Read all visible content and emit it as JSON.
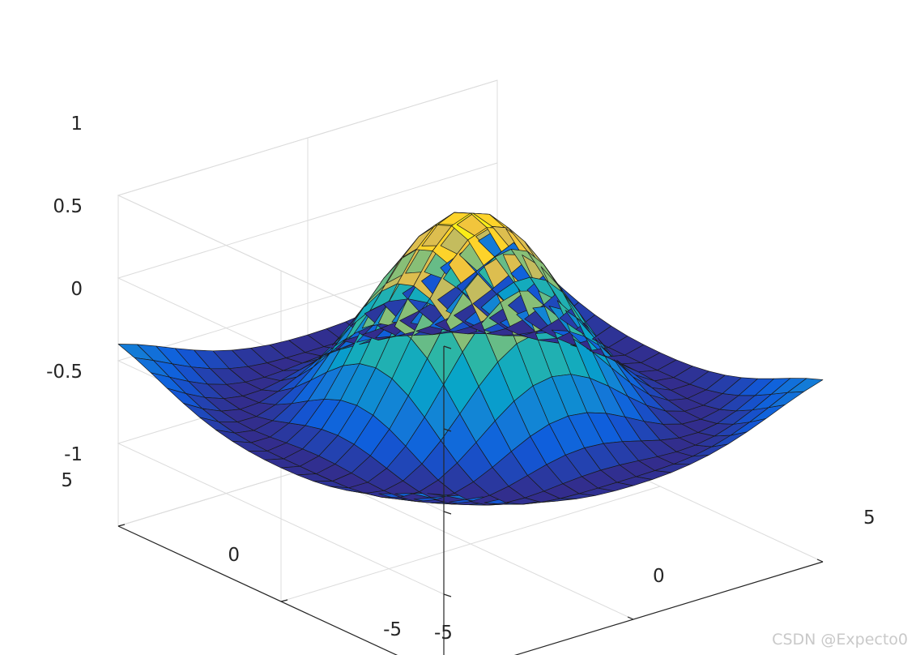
{
  "chart_data": {
    "type": "surface",
    "title": "",
    "xlabel": "",
    "ylabel": "",
    "zlabel": "",
    "grid": true,
    "colormap": "parula",
    "colors": [
      "#352a87",
      "#0f5cdd",
      "#1481d6",
      "#06a4ca",
      "#2eb7a4",
      "#87bf77",
      "#d1bb59",
      "#fec832",
      "#f9fb0e"
    ],
    "function": "z = sin(sqrt(x^2 + y^2)) / sqrt(x^2 + y^2) sampled on a 21 x 21 grid",
    "x": [
      -5,
      -4.5,
      -4,
      -3.5,
      -3,
      -2.5,
      -2,
      -1.5,
      -1,
      -0.5,
      0,
      0.5,
      1,
      1.5,
      2,
      2.5,
      3,
      3.5,
      4,
      4.5,
      5
    ],
    "y": [
      -5,
      -4.5,
      -4,
      -3.5,
      -3,
      -2.5,
      -2,
      -1.5,
      -1,
      -0.5,
      0,
      0.5,
      1,
      1.5,
      2,
      2.5,
      3,
      3.5,
      4,
      4.5,
      5
    ],
    "xlim": [
      -5,
      5
    ],
    "ylim": [
      -5,
      5
    ],
    "zlim": [
      -1,
      1
    ],
    "x_ticks": [
      "-5",
      "0",
      "5"
    ],
    "y_ticks": [
      "-5",
      "0",
      "5"
    ],
    "z_ticks": [
      "-1",
      "-0.5",
      "0",
      "0.5",
      "1"
    ]
  },
  "watermark": "CSDN @Expecto0"
}
